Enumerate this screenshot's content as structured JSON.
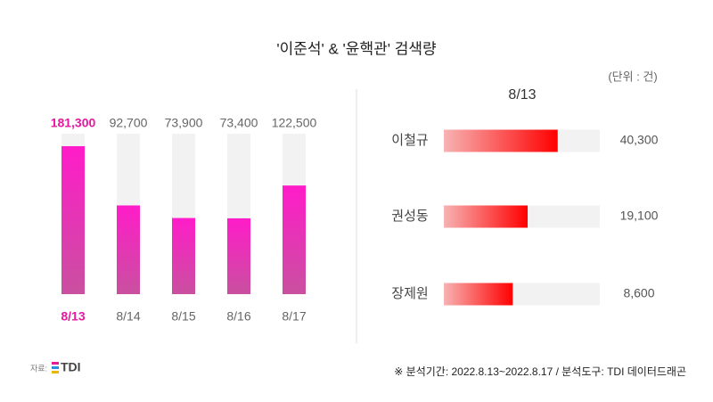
{
  "title": "'이준석' & '윤핵관' 검색량",
  "unit_note": "(단위 : 건)",
  "source_label": "자료:",
  "source_logo": "TDI",
  "footnote": "※ 분석기간: 2022.8.13~2022.8.17 / 분석도구: TDI 데이터드래곤",
  "chart_data": [
    {
      "type": "bar",
      "orientation": "vertical",
      "categories": [
        "8/13",
        "8/14",
        "8/15",
        "8/16",
        "8/17"
      ],
      "values": [
        181300,
        92700,
        73900,
        73400,
        122500
      ],
      "value_labels": [
        "181,300",
        "92,700",
        "73,900",
        "73,400",
        "122,500"
      ],
      "color": [
        "#ff1cc9",
        "#c9509f"
      ],
      "highlight_index": 0,
      "highlight_color": "#e8189f",
      "ylim": [
        -40000,
        200000
      ]
    },
    {
      "type": "bar",
      "orientation": "horizontal",
      "title": "8/13",
      "categories": [
        "이철규",
        "권성동",
        "장제원"
      ],
      "values": [
        40300,
        19100,
        8600
      ],
      "value_labels": [
        "40,300",
        "19,100",
        "8,600"
      ],
      "color": [
        "#f7b3b3",
        "#ff0000"
      ],
      "xlim": [
        -40000,
        70000
      ]
    }
  ]
}
